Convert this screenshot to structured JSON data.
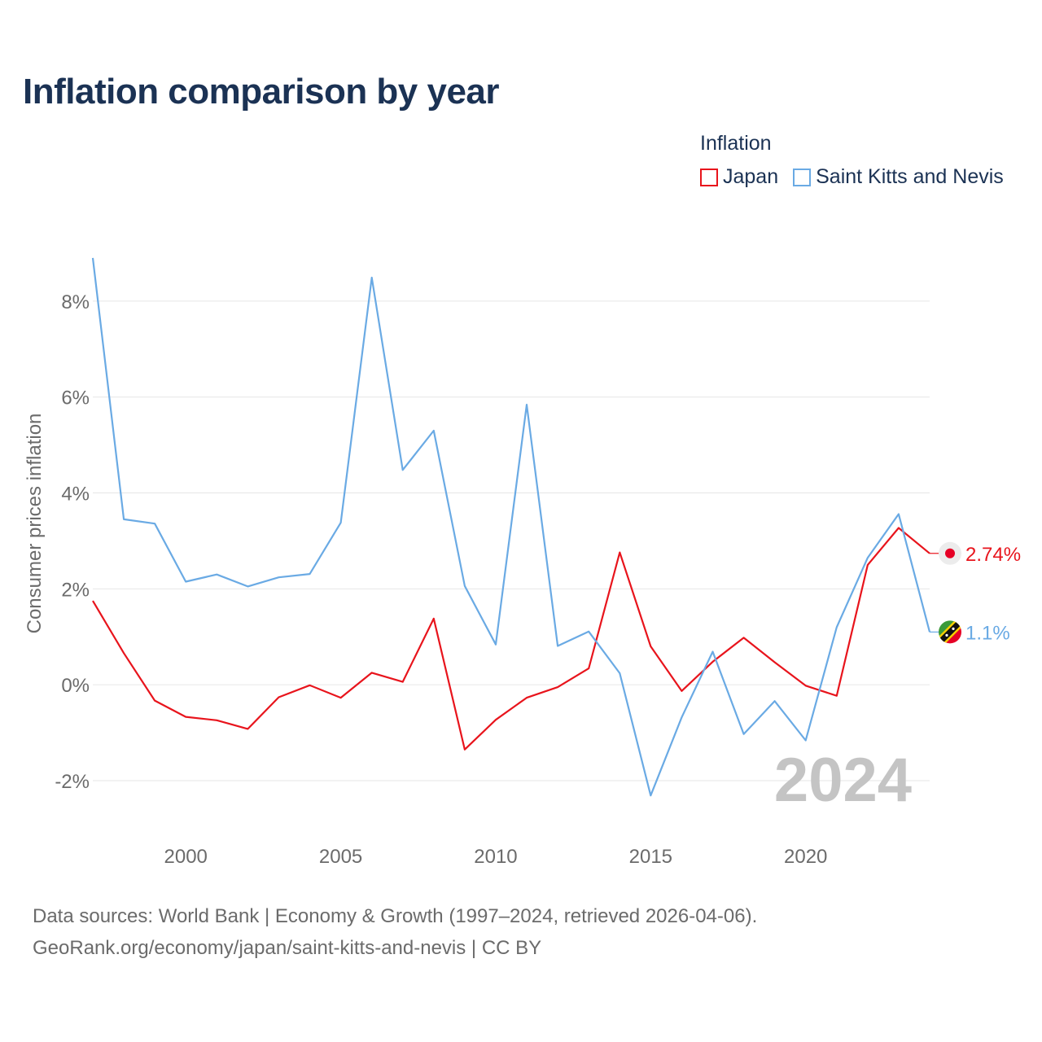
{
  "title": "Inflation comparison by year",
  "legend": {
    "title": "Inflation",
    "items": [
      {
        "label": "Japan",
        "color": "#e8141c"
      },
      {
        "label": "Saint Kitts and Nevis",
        "color": "#6aaae4"
      }
    ]
  },
  "chart_data": {
    "type": "line",
    "ylabel": "Consumer prices inflation",
    "xlabel": "",
    "xlim": [
      1997,
      2024
    ],
    "ylim": [
      -2.9,
      9.0
    ],
    "y_ticks": [
      -2,
      0,
      2,
      4,
      6,
      8
    ],
    "y_tick_labels": [
      "-2%",
      "0%",
      "2%",
      "4%",
      "6%",
      "8%"
    ],
    "x_ticks": [
      2000,
      2005,
      2010,
      2015,
      2020
    ],
    "x_tick_labels": [
      "2000",
      "2005",
      "2010",
      "2015",
      "2020"
    ],
    "x": [
      1997,
      1998,
      1999,
      2000,
      2001,
      2002,
      2003,
      2004,
      2005,
      2006,
      2007,
      2008,
      2009,
      2010,
      2011,
      2012,
      2013,
      2014,
      2015,
      2016,
      2017,
      2018,
      2019,
      2020,
      2021,
      2022,
      2023,
      2024
    ],
    "series": [
      {
        "name": "Japan",
        "color": "#e8141c",
        "values": [
          1.75,
          0.66,
          -0.33,
          -0.67,
          -0.74,
          -0.92,
          -0.26,
          -0.01,
          -0.27,
          0.25,
          0.06,
          1.38,
          -1.35,
          -0.73,
          -0.27,
          -0.05,
          0.34,
          2.76,
          0.8,
          -0.13,
          0.48,
          0.98,
          0.47,
          -0.02,
          -0.23,
          2.5,
          3.27,
          2.74
        ],
        "end_label": "2.74%"
      },
      {
        "name": "Saint Kitts and Nevis",
        "color": "#6aaae4",
        "values": [
          8.9,
          3.45,
          3.36,
          2.15,
          2.3,
          2.05,
          2.24,
          2.31,
          3.38,
          8.49,
          4.48,
          5.3,
          2.06,
          0.84,
          5.84,
          0.81,
          1.11,
          0.24,
          -2.31,
          -0.68,
          0.69,
          -1.03,
          -0.34,
          -1.16,
          1.2,
          2.65,
          3.56,
          1.1
        ],
        "end_label": "1.1%"
      }
    ],
    "watermark_year": "2024",
    "grid": true
  },
  "sources": {
    "line1": "Data sources: World Bank | Economy & Growth (1997–2024, retrieved 2026-04-06).",
    "line2": "GeoRank.org/economy/japan/saint-kitts-and-nevis | CC BY"
  }
}
